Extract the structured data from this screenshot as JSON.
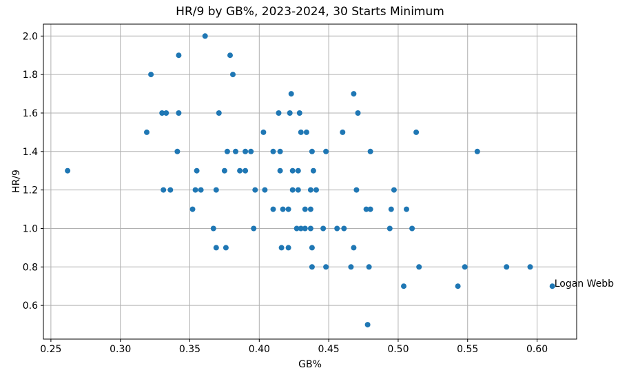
{
  "chart_data": {
    "type": "scatter",
    "title": "HR/9 by GB%, 2023-2024, 30 Starts Minimum",
    "xlabel": "GB%",
    "ylabel": "HR/9",
    "xlim": [
      0.2446,
      0.6285
    ],
    "ylim": [
      0.425,
      2.062
    ],
    "x_ticks": [
      0.25,
      0.3,
      0.35,
      0.4,
      0.45,
      0.5,
      0.55,
      0.6
    ],
    "x_tick_labels": [
      "0.25",
      "0.30",
      "0.35",
      "0.40",
      "0.45",
      "0.50",
      "0.55",
      "0.60"
    ],
    "y_ticks": [
      0.6,
      0.8,
      1.0,
      1.2,
      1.4,
      1.6,
      1.8,
      2.0
    ],
    "y_tick_labels": [
      "0.6",
      "0.8",
      "1.0",
      "1.2",
      "1.4",
      "1.6",
      "1.8",
      "2.0"
    ],
    "grid": true,
    "legend": null,
    "marker_color": "#1f77b4",
    "grid_color": "#b0b0b0",
    "spine_color": "#000000",
    "background_color": "#ffffff",
    "annotation": {
      "text": "Logan Webb",
      "x": 0.611,
      "y": 0.7
    },
    "points": [
      [
        0.361,
        2.0
      ],
      [
        0.342,
        1.9
      ],
      [
        0.379,
        1.9
      ],
      [
        0.322,
        1.8
      ],
      [
        0.381,
        1.8
      ],
      [
        0.423,
        1.7
      ],
      [
        0.468,
        1.7
      ],
      [
        0.33,
        1.6
      ],
      [
        0.333,
        1.6
      ],
      [
        0.342,
        1.6
      ],
      [
        0.371,
        1.6
      ],
      [
        0.414,
        1.6
      ],
      [
        0.422,
        1.6
      ],
      [
        0.429,
        1.6
      ],
      [
        0.471,
        1.6
      ],
      [
        0.319,
        1.5
      ],
      [
        0.403,
        1.5
      ],
      [
        0.43,
        1.5
      ],
      [
        0.434,
        1.5
      ],
      [
        0.46,
        1.5
      ],
      [
        0.513,
        1.5
      ],
      [
        0.341,
        1.4
      ],
      [
        0.377,
        1.4
      ],
      [
        0.383,
        1.4
      ],
      [
        0.39,
        1.4
      ],
      [
        0.394,
        1.4
      ],
      [
        0.41,
        1.4
      ],
      [
        0.415,
        1.4
      ],
      [
        0.438,
        1.4
      ],
      [
        0.448,
        1.4
      ],
      [
        0.48,
        1.4
      ],
      [
        0.557,
        1.4
      ],
      [
        0.262,
        1.3
      ],
      [
        0.355,
        1.3
      ],
      [
        0.375,
        1.3
      ],
      [
        0.386,
        1.3
      ],
      [
        0.39,
        1.3
      ],
      [
        0.415,
        1.3
      ],
      [
        0.424,
        1.3
      ],
      [
        0.428,
        1.3
      ],
      [
        0.439,
        1.3
      ],
      [
        0.331,
        1.2
      ],
      [
        0.336,
        1.2
      ],
      [
        0.354,
        1.2
      ],
      [
        0.358,
        1.2
      ],
      [
        0.369,
        1.2
      ],
      [
        0.397,
        1.2
      ],
      [
        0.404,
        1.2
      ],
      [
        0.424,
        1.2
      ],
      [
        0.428,
        1.2
      ],
      [
        0.437,
        1.2
      ],
      [
        0.441,
        1.2
      ],
      [
        0.47,
        1.2
      ],
      [
        0.497,
        1.2
      ],
      [
        0.352,
        1.1
      ],
      [
        0.41,
        1.1
      ],
      [
        0.417,
        1.1
      ],
      [
        0.421,
        1.1
      ],
      [
        0.433,
        1.1
      ],
      [
        0.437,
        1.1
      ],
      [
        0.477,
        1.1
      ],
      [
        0.48,
        1.1
      ],
      [
        0.495,
        1.1
      ],
      [
        0.506,
        1.1
      ],
      [
        0.367,
        1.0
      ],
      [
        0.396,
        1.0
      ],
      [
        0.427,
        1.0
      ],
      [
        0.43,
        1.0
      ],
      [
        0.433,
        1.0
      ],
      [
        0.437,
        1.0
      ],
      [
        0.446,
        1.0
      ],
      [
        0.456,
        1.0
      ],
      [
        0.461,
        1.0
      ],
      [
        0.494,
        1.0
      ],
      [
        0.51,
        1.0
      ],
      [
        0.369,
        0.9
      ],
      [
        0.376,
        0.9
      ],
      [
        0.416,
        0.9
      ],
      [
        0.421,
        0.9
      ],
      [
        0.438,
        0.9
      ],
      [
        0.468,
        0.9
      ],
      [
        0.438,
        0.8
      ],
      [
        0.448,
        0.8
      ],
      [
        0.466,
        0.8
      ],
      [
        0.479,
        0.8
      ],
      [
        0.515,
        0.8
      ],
      [
        0.548,
        0.8
      ],
      [
        0.578,
        0.8
      ],
      [
        0.595,
        0.8
      ],
      [
        0.504,
        0.7
      ],
      [
        0.543,
        0.7
      ],
      [
        0.611,
        0.7
      ],
      [
        0.478,
        0.5
      ]
    ]
  }
}
